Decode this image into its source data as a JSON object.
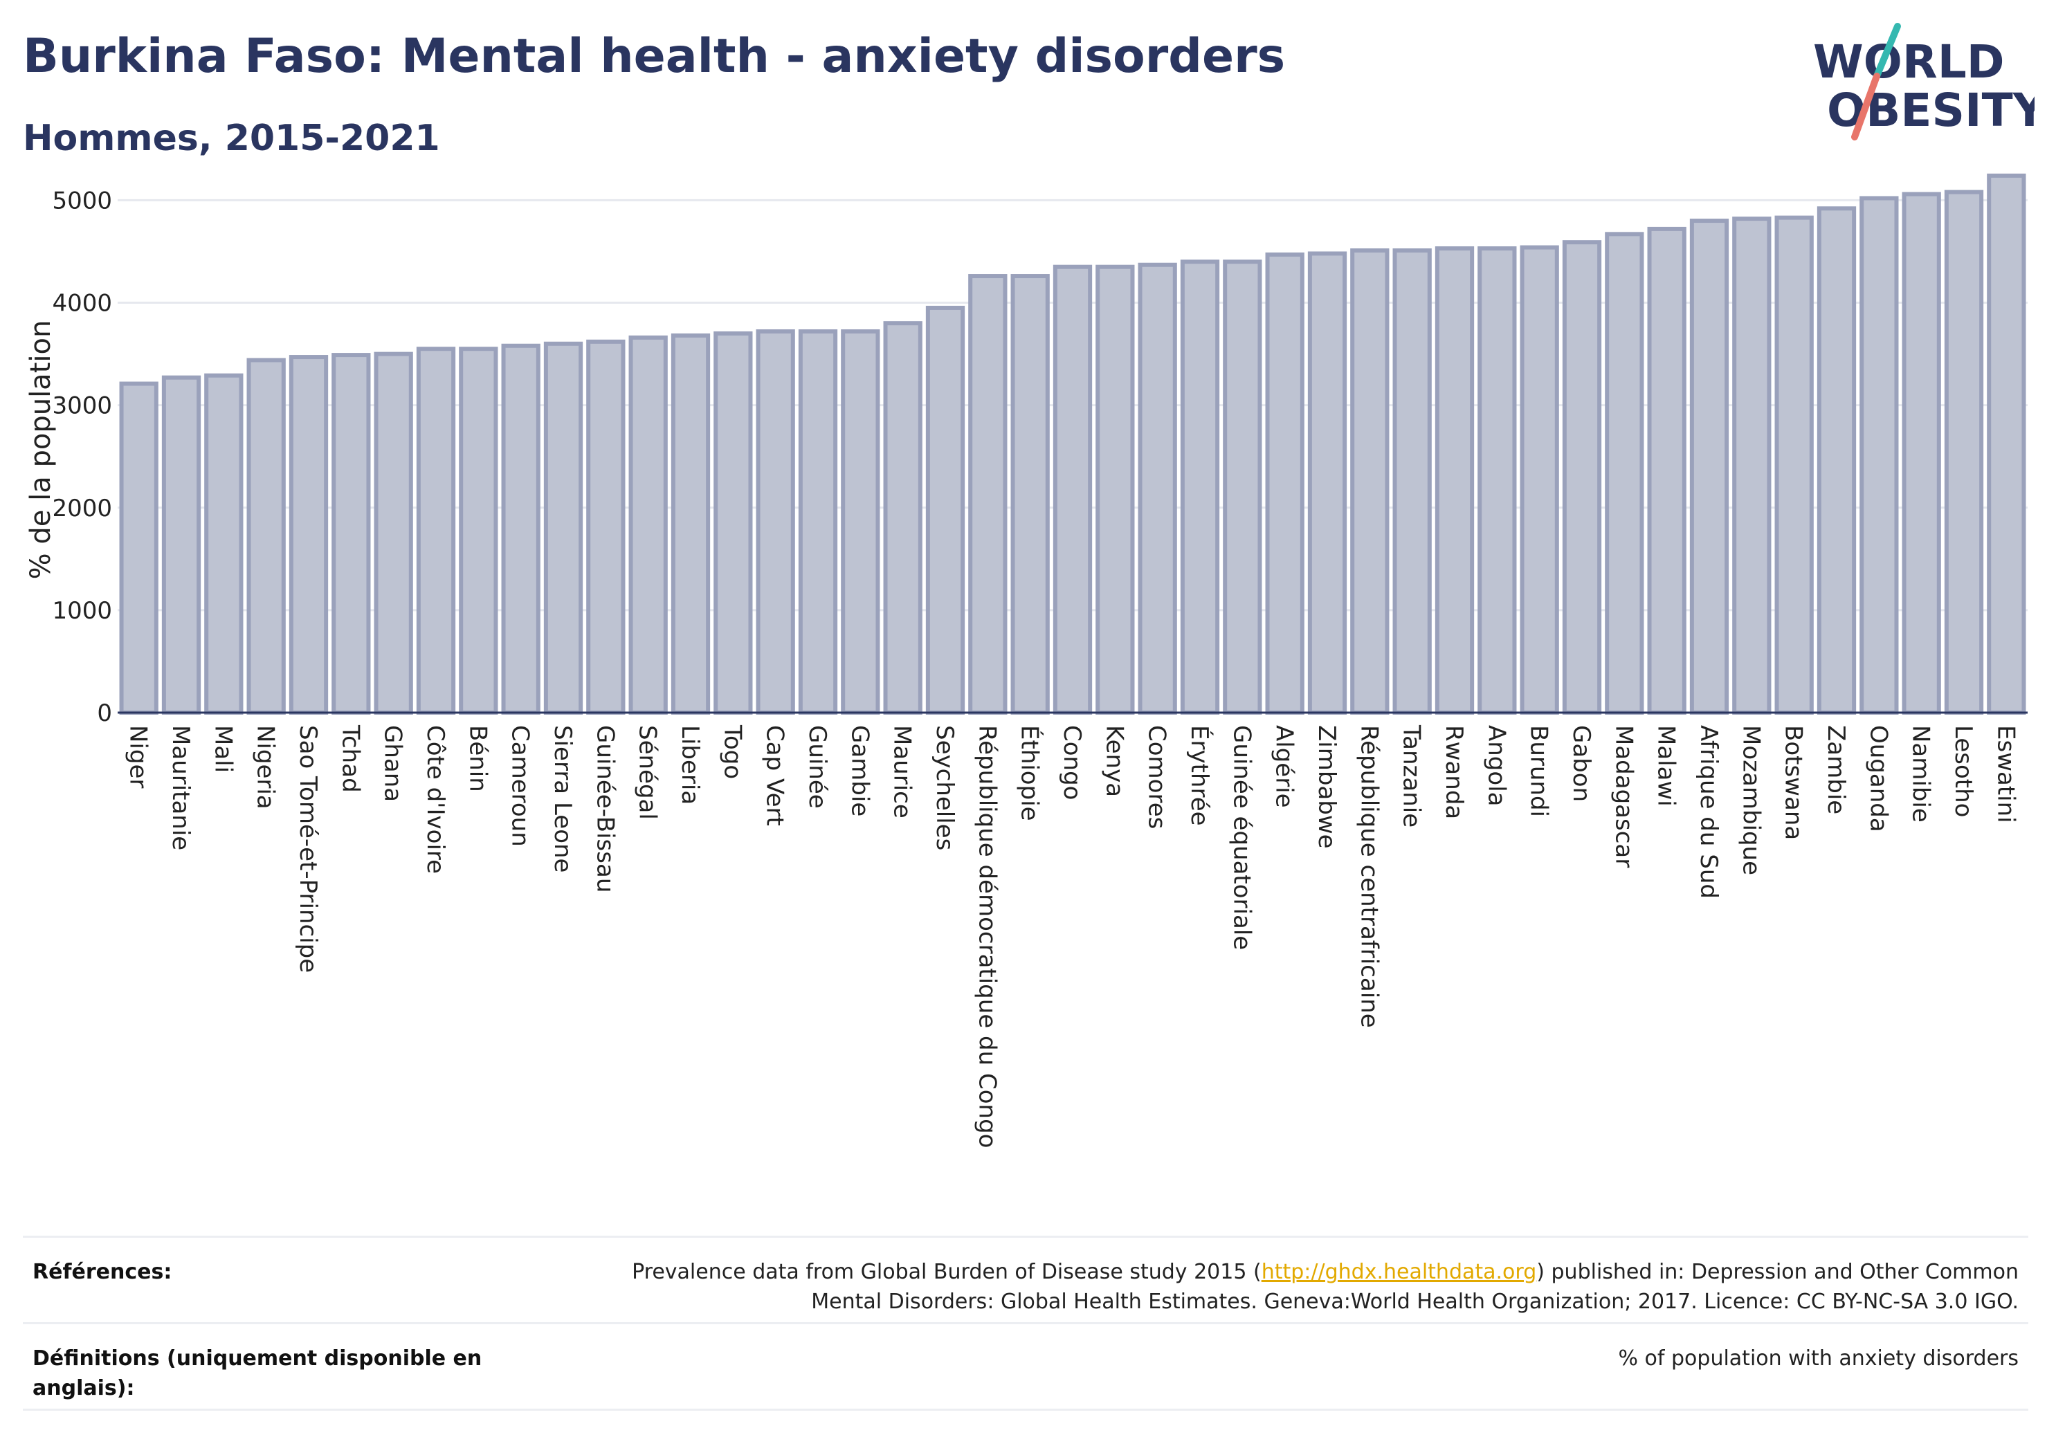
{
  "header": {
    "title": "Burkina Faso: Mental health - anxiety disorders",
    "subtitle": "Hommes, 2015-2021"
  },
  "logo": {
    "line1": "WORLD",
    "line2": "OBESITY",
    "slash_colors": [
      "#35b8b0",
      "#e8756a"
    ],
    "text_color": "#2a3560"
  },
  "chart_data": {
    "type": "bar",
    "ylabel": "% de la population",
    "ylim": [
      0,
      5300
    ],
    "yticks": [
      0,
      1000,
      2000,
      3000,
      4000,
      5000
    ],
    "grid": true,
    "bar_color": "#bec3d2",
    "bar_edge_color": "#9aa1bb",
    "categories": [
      "Niger",
      "Mauritanie",
      "Mali",
      "Nigeria",
      "Sao Tomé-et-Principe",
      "Tchad",
      "Ghana",
      "Côte d'Ivoire",
      "Bénin",
      "Cameroun",
      "Sierra Leone",
      "Guinée-Bissau",
      "Sénégal",
      "Liberia",
      "Togo",
      "Cap Vert",
      "Guinée",
      "Gambie",
      "Maurice",
      "Seychelles",
      "République démocratique du Congo",
      "Éthiopie",
      "Congo",
      "Kenya",
      "Comores",
      "Érythrée",
      "Guinée équatoriale",
      "Algérie",
      "Zimbabwe",
      "République centrafricaine",
      "Tanzanie",
      "Rwanda",
      "Angola",
      "Burundi",
      "Gabon",
      "Madagascar",
      "Malawi",
      "Afrique du Sud",
      "Mozambique",
      "Botswana",
      "Zambie",
      "Ouganda",
      "Namibie",
      "Lesotho",
      "Eswatini"
    ],
    "values": [
      3210,
      3270,
      3290,
      3440,
      3470,
      3490,
      3500,
      3550,
      3550,
      3580,
      3600,
      3620,
      3660,
      3680,
      3700,
      3720,
      3720,
      3720,
      3800,
      3950,
      4260,
      4260,
      4350,
      4350,
      4370,
      4400,
      4400,
      4470,
      4480,
      4510,
      4510,
      4530,
      4530,
      4540,
      4590,
      4670,
      4720,
      4800,
      4820,
      4830,
      4920,
      5020,
      5060,
      5080,
      5240
    ]
  },
  "references": [
    {
      "label": "Références:",
      "text_before": "Prevalence data from Global Burden of Disease study 2015 (",
      "link": "http://ghdx.healthdata.org",
      "text_after": ") published in: Depression and Other Common Mental Disorders: Global Health Estimates. Geneva:World Health Organization; 2017. Licence: CC BY-NC-SA 3.0 IGO."
    },
    {
      "label": "Définitions (uniquement disponible en anglais):",
      "text_before": "% of population with anxiety disorders",
      "link": "",
      "text_after": ""
    }
  ]
}
